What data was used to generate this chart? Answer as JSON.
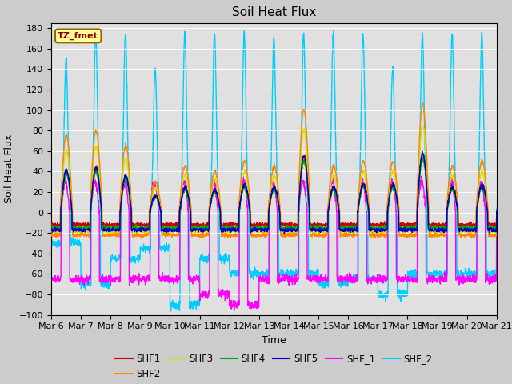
{
  "title": "Soil Heat Flux",
  "xlabel": "Time",
  "ylabel": "Soil Heat Flux",
  "ylim": [
    -100,
    185
  ],
  "yticks": [
    -100,
    -80,
    -60,
    -40,
    -20,
    0,
    20,
    40,
    60,
    80,
    100,
    120,
    140,
    160,
    180
  ],
  "background_color": "#cccccc",
  "plot_bg_color": "#e0e0e0",
  "series_colors": {
    "SHF1": "#cc0000",
    "SHF2": "#ff8800",
    "SHF3": "#dddd00",
    "SHF4": "#00aa00",
    "SHF5": "#0000cc",
    "SHF_1": "#ff00ff",
    "SHF_2": "#00ccff"
  },
  "n_days": 15,
  "start_day": 6,
  "annotation_text": "TZ_fmet",
  "annotation_bg": "#ffff99",
  "annotation_border": "#996600"
}
